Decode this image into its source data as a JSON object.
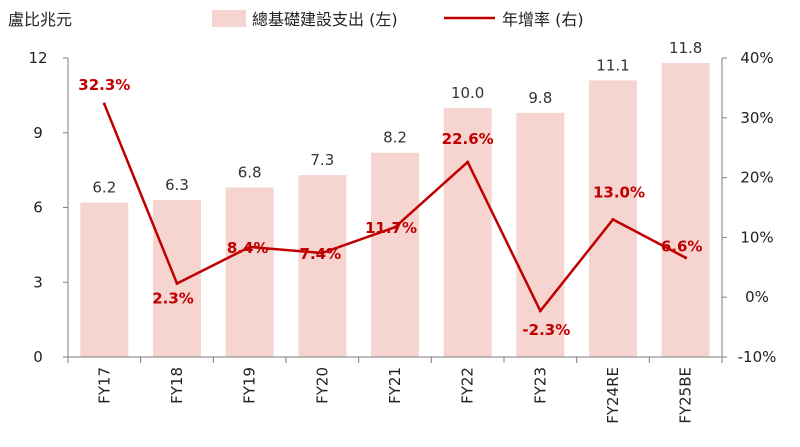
{
  "chart_data": {
    "type": "bar",
    "unit_label": "盧比兆元",
    "categories": [
      "FY17",
      "FY18",
      "FY19",
      "FY20",
      "FY21",
      "FY22",
      "FY23",
      "FY24RE",
      "FY25BE"
    ],
    "series": [
      {
        "name": "總基礎建設支出 (左)",
        "type": "bar",
        "axis": "left",
        "color": "#f6d5d0",
        "values": [
          6.2,
          6.3,
          6.8,
          7.3,
          8.2,
          10.0,
          9.8,
          11.1,
          11.8
        ],
        "labels": [
          "6.2",
          "6.3",
          "6.8",
          "7.3",
          "8.2",
          "10.0",
          "9.8",
          "11.1",
          "11.8"
        ]
      },
      {
        "name": "年增率 (右)",
        "type": "line",
        "axis": "right",
        "color": "#c00000",
        "values": [
          32.3,
          2.3,
          8.4,
          7.4,
          11.7,
          22.6,
          -2.3,
          13.0,
          6.6
        ],
        "labels": [
          "32.3%",
          "2.3%",
          "8.4%",
          "7.4%",
          "11.7%",
          "22.6%",
          "-2.3%",
          "13.0%",
          "6.6%"
        ]
      }
    ],
    "y_left": {
      "range": [
        0,
        12
      ],
      "ticks": [
        0,
        3,
        6,
        9,
        12
      ],
      "tick_labels": [
        "0",
        "3",
        "6",
        "9",
        "12"
      ]
    },
    "y_right": {
      "range": [
        -10,
        40
      ],
      "ticks": [
        -10,
        0,
        10,
        20,
        30,
        40
      ],
      "tick_labels": [
        "-10%",
        "0%",
        "10%",
        "20%",
        "30%",
        "40%"
      ]
    },
    "grid": false,
    "legend": "top"
  }
}
